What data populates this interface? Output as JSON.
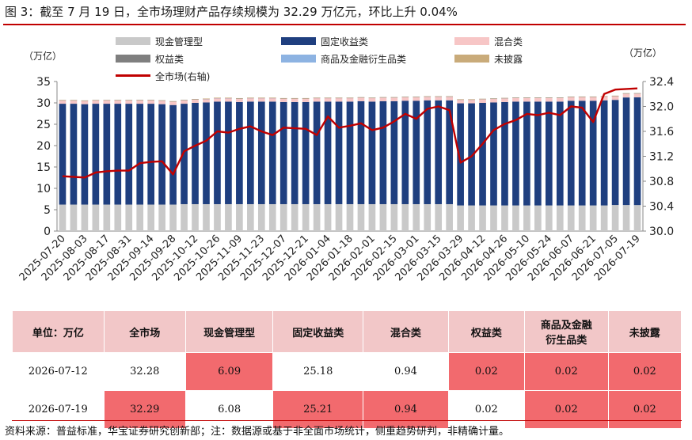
{
  "title": "图 3：截至 7 月 19 日，全市场理财产品存续规模为 32.29 万亿元，环比上升 0.04%",
  "units": {
    "left": "（万亿）",
    "right": "（万亿）"
  },
  "legend": [
    {
      "label": "现金管理型",
      "color": "#c9c9c9"
    },
    {
      "label": "固定收益类",
      "color": "#1f3f7f"
    },
    {
      "label": "混合类",
      "color": "#f7c6c6"
    },
    {
      "label": "权益类",
      "color": "#7f7f7f"
    },
    {
      "label": "商品及金融衍生品类",
      "color": "#8db3e2"
    },
    {
      "label": "未披露",
      "color": "#c9ab7a"
    },
    {
      "label": "全市场(右轴)",
      "color": "#c00000"
    }
  ],
  "chart_data": {
    "type": "bar",
    "stacked": true,
    "categories": [
      "2025-07-20",
      "2025-07-27",
      "2025-08-03",
      "2025-08-10",
      "2025-08-17",
      "2025-08-24",
      "2025-08-31",
      "2025-09-07",
      "2025-09-14",
      "2025-09-21",
      "2025-09-28",
      "2025-10-05",
      "2025-10-12",
      "2025-10-19",
      "2025-10-26",
      "2025-11-02",
      "2025-11-09",
      "2025-11-16",
      "2025-11-23",
      "2025-11-30",
      "2025-12-07",
      "2025-12-14",
      "2025-12-21",
      "2025-12-28",
      "2026-01-04",
      "2026-01-11",
      "2026-01-18",
      "2026-01-25",
      "2026-02-01",
      "2026-02-08",
      "2026-02-15",
      "2026-02-22",
      "2026-03-01",
      "2026-03-08",
      "2026-03-15",
      "2026-03-22",
      "2026-03-29",
      "2026-04-05",
      "2026-04-12",
      "2026-04-19",
      "2026-04-26",
      "2026-05-03",
      "2026-05-10",
      "2026-05-17",
      "2026-05-24",
      "2026-05-31",
      "2026-06-07",
      "2026-06-14",
      "2026-06-21",
      "2026-06-28",
      "2026-07-05",
      "2026-07-12",
      "2026-07-19"
    ],
    "tick_labels": [
      "2025-07-20",
      "2025-08-03",
      "2025-08-17",
      "2025-08-31",
      "2025-09-14",
      "2025-09-28",
      "2025-10-12",
      "2025-10-26",
      "2025-11-09",
      "2025-11-23",
      "2025-12-07",
      "2025-12-21",
      "2026-01-04",
      "2026-01-18",
      "2026-02-01",
      "2026-02-15",
      "2026-03-01",
      "2026-03-15",
      "2026-03-29",
      "2026-04-12",
      "2026-04-26",
      "2026-05-10",
      "2026-05-24",
      "2026-06-07",
      "2026-06-21",
      "2026-07-05",
      "2026-07-19"
    ],
    "series": [
      {
        "name": "现金管理型",
        "values": [
          6.2,
          6.2,
          6.2,
          6.2,
          6.2,
          6.2,
          6.2,
          6.2,
          6.2,
          6.2,
          6.2,
          6.3,
          6.3,
          6.3,
          6.3,
          6.3,
          6.3,
          6.3,
          6.3,
          6.3,
          6.3,
          6.3,
          6.3,
          6.3,
          6.3,
          6.3,
          6.3,
          6.3,
          6.3,
          6.3,
          6.3,
          6.3,
          6.3,
          6.3,
          6.3,
          6.3,
          6.0,
          6.0,
          6.0,
          6.0,
          6.0,
          6.0,
          6.0,
          6.0,
          6.0,
          6.0,
          6.0,
          6.0,
          6.0,
          6.0,
          6.1,
          6.09,
          6.08
        ]
      },
      {
        "name": "固定收益类",
        "values": [
          23.6,
          23.6,
          23.5,
          23.6,
          23.6,
          23.6,
          23.6,
          23.6,
          23.6,
          23.5,
          23.3,
          23.5,
          23.7,
          23.8,
          24.0,
          24.0,
          23.9,
          24.0,
          24.0,
          24.0,
          23.9,
          23.9,
          23.9,
          24.0,
          24.0,
          24.0,
          24.0,
          24.1,
          24.0,
          24.1,
          24.1,
          24.2,
          24.2,
          24.3,
          24.3,
          24.3,
          23.9,
          23.9,
          24.0,
          24.1,
          24.2,
          24.3,
          24.3,
          24.3,
          24.3,
          24.3,
          24.5,
          24.5,
          24.5,
          24.6,
          24.6,
          25.18,
          25.21
        ]
      },
      {
        "name": "混合类",
        "values": [
          0.82,
          0.82,
          0.82,
          0.83,
          0.83,
          0.84,
          0.84,
          0.85,
          0.85,
          0.85,
          0.85,
          0.85,
          0.86,
          0.86,
          0.86,
          0.86,
          0.86,
          0.87,
          0.87,
          0.87,
          0.87,
          0.87,
          0.87,
          0.88,
          0.88,
          0.88,
          0.88,
          0.88,
          0.89,
          0.89,
          0.89,
          0.89,
          0.9,
          0.9,
          0.9,
          0.9,
          0.9,
          0.9,
          0.91,
          0.91,
          0.91,
          0.91,
          0.92,
          0.92,
          0.92,
          0.92,
          0.92,
          0.93,
          0.93,
          0.93,
          0.93,
          0.94,
          0.94
        ]
      },
      {
        "name": "权益类",
        "values": [
          0.02,
          0.02,
          0.02,
          0.02,
          0.02,
          0.02,
          0.02,
          0.02,
          0.02,
          0.02,
          0.02,
          0.02,
          0.02,
          0.02,
          0.02,
          0.02,
          0.02,
          0.02,
          0.02,
          0.02,
          0.02,
          0.02,
          0.02,
          0.02,
          0.02,
          0.02,
          0.02,
          0.02,
          0.02,
          0.02,
          0.02,
          0.02,
          0.02,
          0.02,
          0.02,
          0.02,
          0.02,
          0.02,
          0.02,
          0.02,
          0.02,
          0.02,
          0.02,
          0.02,
          0.02,
          0.02,
          0.02,
          0.02,
          0.02,
          0.02,
          0.02,
          0.02,
          0.02
        ]
      },
      {
        "name": "商品及金融衍生品类",
        "values": [
          0.02,
          0.02,
          0.02,
          0.02,
          0.02,
          0.02,
          0.02,
          0.02,
          0.02,
          0.02,
          0.02,
          0.02,
          0.02,
          0.02,
          0.02,
          0.02,
          0.02,
          0.02,
          0.02,
          0.02,
          0.02,
          0.02,
          0.02,
          0.02,
          0.02,
          0.02,
          0.02,
          0.02,
          0.02,
          0.02,
          0.02,
          0.02,
          0.02,
          0.02,
          0.02,
          0.02,
          0.02,
          0.02,
          0.02,
          0.02,
          0.02,
          0.02,
          0.02,
          0.02,
          0.02,
          0.02,
          0.02,
          0.02,
          0.02,
          0.02,
          0.02,
          0.02,
          0.02
        ]
      },
      {
        "name": "未披露",
        "values": [
          0.02,
          0.02,
          0.02,
          0.02,
          0.02,
          0.02,
          0.02,
          0.02,
          0.02,
          0.02,
          0.02,
          0.02,
          0.02,
          0.02,
          0.02,
          0.02,
          0.02,
          0.02,
          0.02,
          0.02,
          0.02,
          0.02,
          0.02,
          0.02,
          0.02,
          0.02,
          0.02,
          0.02,
          0.02,
          0.02,
          0.02,
          0.02,
          0.02,
          0.02,
          0.02,
          0.02,
          0.02,
          0.02,
          0.02,
          0.02,
          0.02,
          0.02,
          0.02,
          0.02,
          0.02,
          0.02,
          0.02,
          0.02,
          0.02,
          0.02,
          0.02,
          0.02,
          0.02
        ]
      },
      {
        "name": "全市场(右轴)",
        "axis": "right",
        "type": "line",
        "values": [
          30.88,
          30.87,
          30.86,
          30.94,
          30.96,
          30.97,
          30.97,
          31.09,
          31.11,
          31.12,
          30.91,
          31.28,
          31.37,
          31.45,
          31.6,
          31.58,
          31.64,
          31.68,
          31.6,
          31.54,
          31.66,
          31.65,
          31.64,
          31.54,
          31.84,
          31.66,
          31.69,
          31.73,
          31.62,
          31.66,
          31.76,
          31.88,
          31.8,
          31.96,
          32.0,
          31.94,
          31.1,
          31.2,
          31.4,
          31.62,
          31.72,
          31.78,
          31.88,
          31.86,
          31.9,
          31.86,
          32.0,
          31.98,
          31.75,
          32.2,
          32.27,
          32.28,
          32.29
        ]
      }
    ],
    "ylim_left": [
      0,
      35
    ],
    "yticks_left": [
      "0",
      "5",
      "10",
      "15",
      "20",
      "25",
      "30",
      "35"
    ],
    "ylim_right": [
      30.0,
      32.4
    ],
    "yticks_right": [
      "30.0",
      "30.4",
      "30.8",
      "31.2",
      "31.6",
      "32.0",
      "32.4"
    ],
    "grid": false,
    "legend_position": "top"
  },
  "table": {
    "headers": [
      "单位：万亿",
      "全市场",
      "现金管理型",
      "固定收益类",
      "混合类",
      "权益类",
      "商品及金融\n衍生品类",
      "未披露"
    ],
    "rows": [
      {
        "cells": [
          "2026-07-12",
          "32.28",
          "6.09",
          "25.18",
          "0.94",
          "0.02",
          "0.02",
          "0.02"
        ],
        "highlight": [
          false,
          false,
          true,
          false,
          false,
          true,
          true,
          true
        ]
      },
      {
        "cells": [
          "2026-07-19",
          "32.29",
          "6.08",
          "25.21",
          "0.94",
          "0.02",
          "0.02",
          "0.02"
        ],
        "highlight": [
          false,
          true,
          false,
          true,
          true,
          false,
          true,
          true
        ]
      }
    ]
  },
  "source": "资料来源：普益标准，华宝证券研究创新部；注：数据源或基于非全面市场统计，侧重趋势研判，非精确计量。"
}
